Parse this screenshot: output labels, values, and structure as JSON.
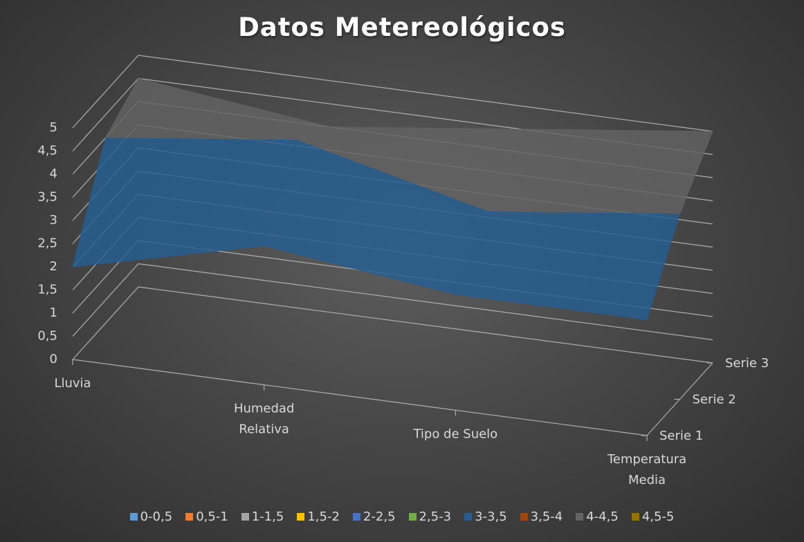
{
  "chart_data": {
    "type": "surface",
    "title": "Datos Metereológicos",
    "categories": [
      "Lluvia",
      "Humedad Relativa",
      "Tipo de Suelo",
      "Temperatura Media"
    ],
    "series": [
      {
        "name": "Serie 1",
        "values": [
          2.0,
          3.0,
          2.5,
          2.5
        ]
      },
      {
        "name": "Serie 2",
        "values": [
          4.0,
          4.5,
          3.5,
          4.0
        ]
      },
      {
        "name": "Serie 3",
        "values": [
          4.5,
          4.0,
          4.5,
          5.0
        ]
      }
    ],
    "zlim": [
      0,
      5
    ],
    "z_ticks": [
      "0",
      "0,5",
      "1",
      "1,5",
      "2",
      "2,5",
      "3",
      "3,5",
      "4",
      "4,5",
      "5"
    ],
    "legend": [
      {
        "label": "0-0,5",
        "color": "#5b9bd5"
      },
      {
        "label": "0,5-1",
        "color": "#ed7d31"
      },
      {
        "label": "1-1,5",
        "color": "#a5a5a5"
      },
      {
        "label": "1,5-2",
        "color": "#ffc000"
      },
      {
        "label": "2-2,5",
        "color": "#4472c4"
      },
      {
        "label": "2,5-3",
        "color": "#70ad47"
      },
      {
        "label": "3-3,5",
        "color": "#255e91"
      },
      {
        "label": "3,5-4",
        "color": "#9e480e"
      },
      {
        "label": "4-4,5",
        "color": "#636363"
      },
      {
        "label": "4,5-5",
        "color": "#997300"
      }
    ],
    "legend_position": "bottom"
  }
}
